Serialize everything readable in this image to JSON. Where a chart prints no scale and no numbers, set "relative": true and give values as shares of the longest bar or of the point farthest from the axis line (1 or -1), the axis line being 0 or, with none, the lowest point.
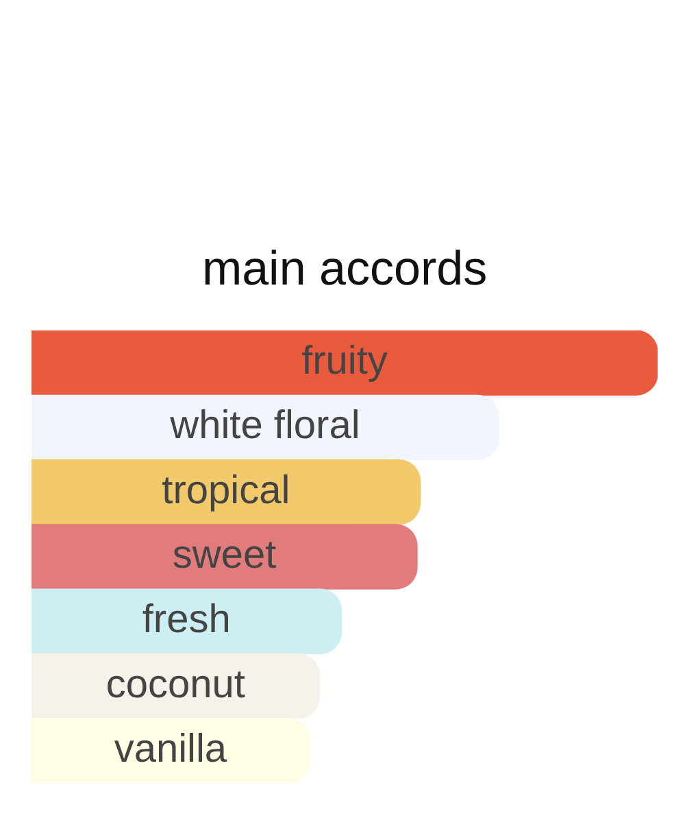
{
  "chart_data": {
    "type": "bar",
    "orientation": "horizontal",
    "relative": true,
    "title": "main accords",
    "categories": [
      "fruity",
      "white floral",
      "tropical",
      "sweet",
      "fresh",
      "coconut",
      "vanilla"
    ],
    "values": [
      1,
      0.746,
      0.621,
      0.616,
      0.495,
      0.46,
      0.444
    ],
    "colors": [
      "#ea5a3c",
      "#f2f5fd",
      "#f2ca6c",
      "#e27c7c",
      "#cdeef3",
      "#f6f2ea",
      "#fefee4"
    ],
    "data_labels": false
  }
}
